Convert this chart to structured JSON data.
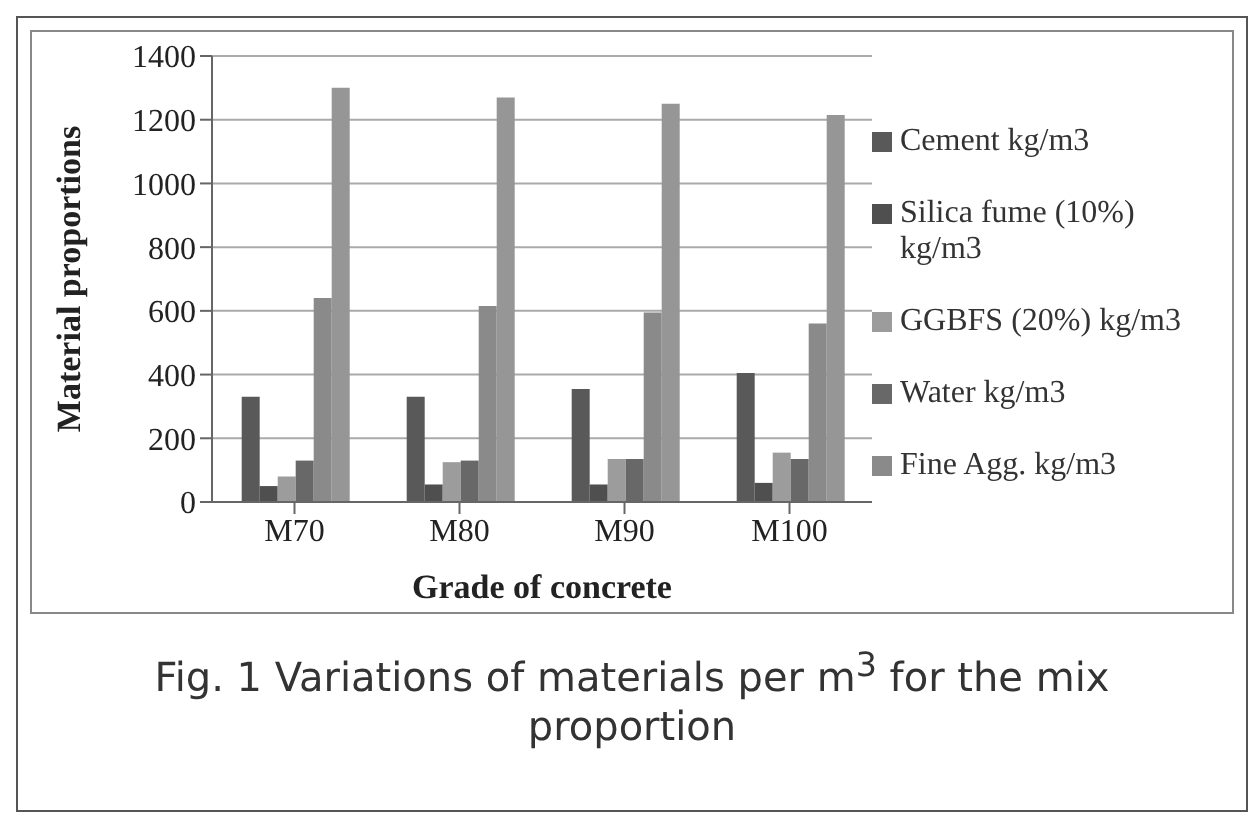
{
  "chart_data": {
    "type": "bar",
    "xlabel": "Grade of concrete",
    "ylabel": "Material proportions",
    "categories": [
      "M70",
      "M80",
      "M90",
      "M100"
    ],
    "series": [
      {
        "name": "Cement kg/m3",
        "color": "#595959",
        "values": [
          330,
          330,
          355,
          405
        ]
      },
      {
        "name": "Silica fume (10%) kg/m3",
        "color": "#4f4f4f",
        "values": [
          50,
          55,
          55,
          60
        ]
      },
      {
        "name": "GGBFS (20%) kg/m3",
        "color": "#9c9c9c",
        "values": [
          80,
          125,
          135,
          155
        ]
      },
      {
        "name": "Water kg/m3",
        "color": "#686868",
        "values": [
          130,
          130,
          135,
          135
        ]
      },
      {
        "name": "Fine Agg. kg/m3",
        "color": "#8a8a8a",
        "values": [
          640,
          615,
          595,
          560
        ]
      },
      {
        "color": "#969696",
        "values": [
          1300,
          1270,
          1250,
          1215
        ]
      }
    ],
    "ylim": [
      0,
      1400
    ],
    "yticks": [
      0,
      200,
      400,
      600,
      800,
      1000,
      1200,
      1400
    ],
    "grid": "y",
    "legend": "right",
    "annotations": [
      "Fig. 1 Variations of materials per m$^{3}$ for the mix proportion"
    ]
  }
}
